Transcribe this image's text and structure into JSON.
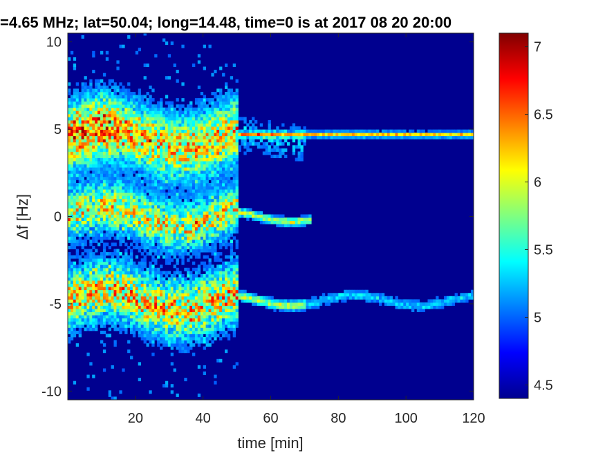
{
  "chart_data": {
    "type": "heatmap",
    "title": "=4.65 MHz;  lat=50.04; long=14.48, time=0 is at 2017 08 20 20:00",
    "xlabel": "time [min]",
    "ylabel": "Δf [Hz]",
    "xlim": [
      0,
      120
    ],
    "ylim": [
      -10.5,
      10.5
    ],
    "xticks": [
      20,
      40,
      60,
      80,
      100,
      120
    ],
    "xtick_labels": [
      "20",
      "40",
      "60",
      "80",
      "100",
      "120"
    ],
    "yticks": [
      10,
      5,
      0,
      -5,
      -10
    ],
    "ytick_labels": [
      "10",
      "5",
      "0",
      "-5",
      "-10"
    ],
    "colorbar": {
      "colormap": "jet",
      "range": [
        4.4,
        7.1
      ],
      "ticks": [
        7,
        6.5,
        6,
        5.5,
        5,
        4.5
      ],
      "tick_labels": [
        "7",
        "6.5",
        "6",
        "5.5",
        "5",
        "4.5"
      ]
    },
    "features": [
      {
        "label": "upper band",
        "center_hz": 4.7,
        "time_min": [
          0,
          120
        ]
      },
      {
        "label": "central band",
        "center_hz": 0.0,
        "time_min": [
          0,
          72
        ]
      },
      {
        "label": "lower band",
        "center_hz": -4.7,
        "time_min": [
          0,
          120
        ]
      }
    ],
    "background_color": "#00008f"
  }
}
